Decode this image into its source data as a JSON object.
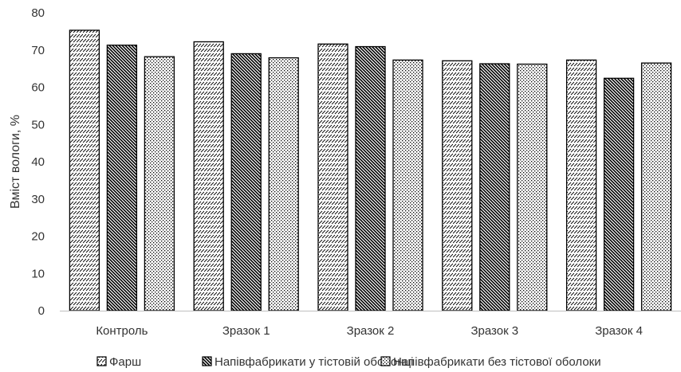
{
  "chart_data": {
    "type": "bar",
    "title": "",
    "xlabel": "",
    "ylabel": "Вміст вологи, %",
    "ylim": [
      0,
      80
    ],
    "yticks": [
      0,
      10,
      20,
      30,
      40,
      50,
      60,
      70,
      80
    ],
    "grid": false,
    "legend_position": "bottom",
    "categories": [
      "Контроль",
      "Зразок 1",
      "Зразок 2",
      "Зразок 3",
      "Зразок 4"
    ],
    "series": [
      {
        "name": "Фарш",
        "pattern": "diagonal-dashes",
        "values": [
          75.3,
          72.2,
          71.6,
          67.1,
          67.3
        ]
      },
      {
        "name": "Напівфабрикати у тістовій оболонці",
        "pattern": "dense-diagonal",
        "values": [
          71.3,
          69.0,
          70.9,
          66.3,
          62.4
        ]
      },
      {
        "name": "Напівфабрикати без тістової оболоки",
        "pattern": "dots",
        "values": [
          68.2,
          67.9,
          67.3,
          66.2,
          66.5
        ]
      }
    ],
    "colors": {
      "stroke": "#000000",
      "text": "#333333",
      "axis": "#bfbfbf"
    }
  }
}
